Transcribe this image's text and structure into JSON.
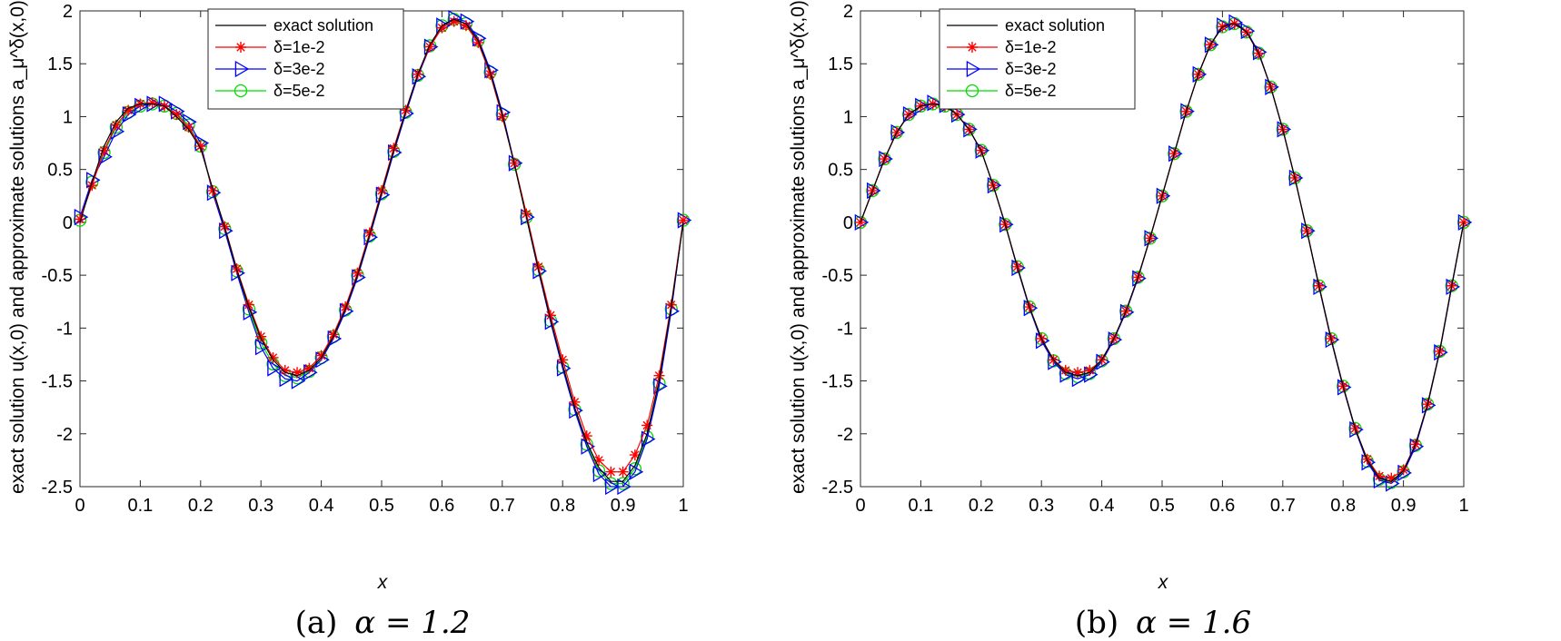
{
  "chart_data": [
    {
      "type": "line",
      "caption_prefix": "(a)",
      "caption_eq": "α = 1.2",
      "xlabel": "x",
      "ylabel": "exact solution u(x,0) and approximate solutions a_μ^δ(x,0)",
      "xlim": [
        0,
        1
      ],
      "ylim": [
        -2.5,
        2
      ],
      "xticks": [
        "0",
        "0.1",
        "0.2",
        "0.3",
        "0.4",
        "0.5",
        "0.6",
        "0.7",
        "0.8",
        "0.9",
        "1"
      ],
      "yticks": [
        "-2.5",
        "-2",
        "-1.5",
        "-1",
        "-0.5",
        "0",
        "0.5",
        "1",
        "1.5",
        "2"
      ],
      "legend_position": "top-left",
      "x": [
        0,
        0.02,
        0.04,
        0.06,
        0.08,
        0.1,
        0.12,
        0.14,
        0.16,
        0.18,
        0.2,
        0.22,
        0.24,
        0.26,
        0.28,
        0.3,
        0.32,
        0.34,
        0.36,
        0.38,
        0.4,
        0.42,
        0.44,
        0.46,
        0.48,
        0.5,
        0.52,
        0.54,
        0.56,
        0.58,
        0.6,
        0.62,
        0.64,
        0.66,
        0.68,
        0.7,
        0.72,
        0.74,
        0.76,
        0.78,
        0.8,
        0.82,
        0.84,
        0.86,
        0.88,
        0.9,
        0.92,
        0.94,
        0.96,
        0.98,
        1
      ],
      "series": [
        {
          "name": "exact solution",
          "color": "#000000",
          "marker": "none",
          "values": [
            0.0,
            0.38,
            0.72,
            0.95,
            1.08,
            1.12,
            1.12,
            1.1,
            1.0,
            0.88,
            0.7,
            0.32,
            -0.05,
            -0.45,
            -0.8,
            -1.1,
            -1.3,
            -1.42,
            -1.45,
            -1.4,
            -1.28,
            -1.08,
            -0.82,
            -0.5,
            -0.12,
            0.28,
            0.68,
            1.05,
            1.4,
            1.68,
            1.86,
            1.92,
            1.88,
            1.72,
            1.42,
            1.02,
            0.55,
            0.05,
            -0.45,
            -0.92,
            -1.35,
            -1.75,
            -2.08,
            -2.32,
            -2.45,
            -2.45,
            -2.3,
            -2.0,
            -1.5,
            -0.8,
            0.0
          ]
        },
        {
          "name": "δ=1e-2",
          "color": "#ff0000",
          "marker": "star",
          "values": [
            0.03,
            0.35,
            0.68,
            0.92,
            1.06,
            1.12,
            1.13,
            1.1,
            1.02,
            0.9,
            0.72,
            0.3,
            -0.04,
            -0.44,
            -0.78,
            -1.08,
            -1.28,
            -1.4,
            -1.42,
            -1.38,
            -1.26,
            -1.06,
            -0.8,
            -0.48,
            -0.1,
            0.3,
            0.7,
            1.06,
            1.4,
            1.66,
            1.84,
            1.9,
            1.86,
            1.7,
            1.4,
            1.0,
            0.56,
            0.08,
            -0.42,
            -0.88,
            -1.3,
            -1.7,
            -2.02,
            -2.25,
            -2.36,
            -2.36,
            -2.2,
            -1.92,
            -1.45,
            -0.78,
            0.02
          ]
        },
        {
          "name": "δ=3e-2",
          "color": "#0000ff",
          "marker": "triangle-right",
          "values": [
            0.05,
            0.4,
            0.62,
            0.86,
            1.02,
            1.1,
            1.12,
            1.12,
            1.05,
            0.95,
            0.75,
            0.28,
            -0.08,
            -0.48,
            -0.85,
            -1.18,
            -1.38,
            -1.48,
            -1.5,
            -1.42,
            -1.3,
            -1.1,
            -0.84,
            -0.52,
            -0.14,
            0.26,
            0.66,
            1.03,
            1.38,
            1.66,
            1.86,
            1.93,
            1.9,
            1.74,
            1.44,
            1.04,
            0.56,
            0.05,
            -0.46,
            -0.94,
            -1.38,
            -1.78,
            -2.12,
            -2.38,
            -2.5,
            -2.5,
            -2.36,
            -2.05,
            -1.55,
            -0.84,
            0.02
          ]
        },
        {
          "name": "δ=5e-2",
          "color": "#00dd00",
          "marker": "circle",
          "values": [
            0.02,
            0.38,
            0.66,
            0.9,
            1.04,
            1.1,
            1.12,
            1.1,
            1.03,
            0.92,
            0.72,
            0.29,
            -0.06,
            -0.46,
            -0.82,
            -1.14,
            -1.34,
            -1.45,
            -1.47,
            -1.41,
            -1.28,
            -1.08,
            -0.83,
            -0.5,
            -0.13,
            0.27,
            0.67,
            1.04,
            1.39,
            1.67,
            1.86,
            1.92,
            1.88,
            1.72,
            1.42,
            1.02,
            0.55,
            0.05,
            -0.45,
            -0.93,
            -1.37,
            -1.77,
            -2.1,
            -2.35,
            -2.47,
            -2.47,
            -2.33,
            -2.03,
            -1.52,
            -0.82,
            0.02
          ]
        }
      ]
    },
    {
      "type": "line",
      "caption_prefix": "(b)",
      "caption_eq": "α = 1.6",
      "xlabel": "x",
      "ylabel": "exact solution u(x,0) and approximate solutions a_μ^δ(x,0)",
      "xlim": [
        0,
        1
      ],
      "ylim": [
        -2.5,
        2
      ],
      "xticks": [
        "0",
        "0.1",
        "0.2",
        "0.3",
        "0.4",
        "0.5",
        "0.6",
        "0.7",
        "0.8",
        "0.9",
        "1"
      ],
      "yticks": [
        "-2.5",
        "-2",
        "-1.5",
        "-1",
        "-0.5",
        "0",
        "0.5",
        "1",
        "1.5",
        "2"
      ],
      "legend_position": "top-left",
      "x": [
        0,
        0.02,
        0.04,
        0.06,
        0.08,
        0.1,
        0.12,
        0.14,
        0.16,
        0.18,
        0.2,
        0.22,
        0.24,
        0.26,
        0.28,
        0.3,
        0.32,
        0.34,
        0.36,
        0.38,
        0.4,
        0.42,
        0.44,
        0.46,
        0.48,
        0.5,
        0.52,
        0.54,
        0.56,
        0.58,
        0.6,
        0.62,
        0.64,
        0.66,
        0.68,
        0.7,
        0.72,
        0.74,
        0.76,
        0.78,
        0.8,
        0.82,
        0.84,
        0.86,
        0.88,
        0.9,
        0.92,
        0.94,
        0.96,
        0.98,
        1
      ],
      "series": [
        {
          "name": "exact solution",
          "color": "#000000",
          "marker": "none",
          "values": [
            0.0,
            0.3,
            0.6,
            0.85,
            1.02,
            1.1,
            1.12,
            1.1,
            1.02,
            0.88,
            0.68,
            0.35,
            -0.02,
            -0.42,
            -0.8,
            -1.1,
            -1.3,
            -1.42,
            -1.45,
            -1.42,
            -1.3,
            -1.1,
            -0.84,
            -0.52,
            -0.15,
            0.25,
            0.65,
            1.05,
            1.4,
            1.68,
            1.85,
            1.88,
            1.8,
            1.6,
            1.28,
            0.88,
            0.42,
            -0.08,
            -0.6,
            -1.1,
            -1.55,
            -1.95,
            -2.25,
            -2.42,
            -2.45,
            -2.35,
            -2.1,
            -1.72,
            -1.22,
            -0.6,
            0.0
          ]
        },
        {
          "name": "δ=1e-2",
          "color": "#ff0000",
          "marker": "star",
          "values": [
            0.0,
            0.3,
            0.6,
            0.85,
            1.02,
            1.1,
            1.12,
            1.1,
            1.02,
            0.88,
            0.68,
            0.35,
            -0.02,
            -0.42,
            -0.8,
            -1.1,
            -1.3,
            -1.4,
            -1.42,
            -1.4,
            -1.3,
            -1.1,
            -0.84,
            -0.52,
            -0.15,
            0.25,
            0.65,
            1.05,
            1.4,
            1.68,
            1.85,
            1.88,
            1.8,
            1.6,
            1.28,
            0.88,
            0.42,
            -0.08,
            -0.6,
            -1.1,
            -1.55,
            -1.95,
            -2.24,
            -2.4,
            -2.42,
            -2.34,
            -2.1,
            -1.72,
            -1.22,
            -0.6,
            0.0
          ]
        },
        {
          "name": "δ=3e-2",
          "color": "#0000ff",
          "marker": "triangle-right",
          "values": [
            0.0,
            0.3,
            0.6,
            0.85,
            1.02,
            1.1,
            1.13,
            1.11,
            1.02,
            0.88,
            0.68,
            0.35,
            -0.02,
            -0.43,
            -0.81,
            -1.12,
            -1.32,
            -1.44,
            -1.48,
            -1.44,
            -1.32,
            -1.11,
            -0.85,
            -0.53,
            -0.15,
            0.25,
            0.65,
            1.05,
            1.4,
            1.68,
            1.86,
            1.89,
            1.81,
            1.61,
            1.28,
            0.88,
            0.42,
            -0.08,
            -0.61,
            -1.11,
            -1.56,
            -1.96,
            -2.27,
            -2.44,
            -2.47,
            -2.37,
            -2.12,
            -1.73,
            -1.23,
            -0.61,
            0.0
          ]
        },
        {
          "name": "δ=5e-2",
          "color": "#00dd00",
          "marker": "circle",
          "values": [
            0.0,
            0.3,
            0.6,
            0.85,
            1.02,
            1.1,
            1.12,
            1.1,
            1.02,
            0.88,
            0.68,
            0.35,
            -0.02,
            -0.42,
            -0.8,
            -1.1,
            -1.31,
            -1.43,
            -1.46,
            -1.43,
            -1.31,
            -1.1,
            -0.84,
            -0.52,
            -0.15,
            0.25,
            0.65,
            1.05,
            1.4,
            1.68,
            1.85,
            1.88,
            1.8,
            1.6,
            1.28,
            0.88,
            0.42,
            -0.08,
            -0.6,
            -1.1,
            -1.55,
            -1.95,
            -2.26,
            -2.43,
            -2.46,
            -2.36,
            -2.11,
            -1.72,
            -1.22,
            -0.6,
            0.0
          ]
        }
      ]
    }
  ]
}
